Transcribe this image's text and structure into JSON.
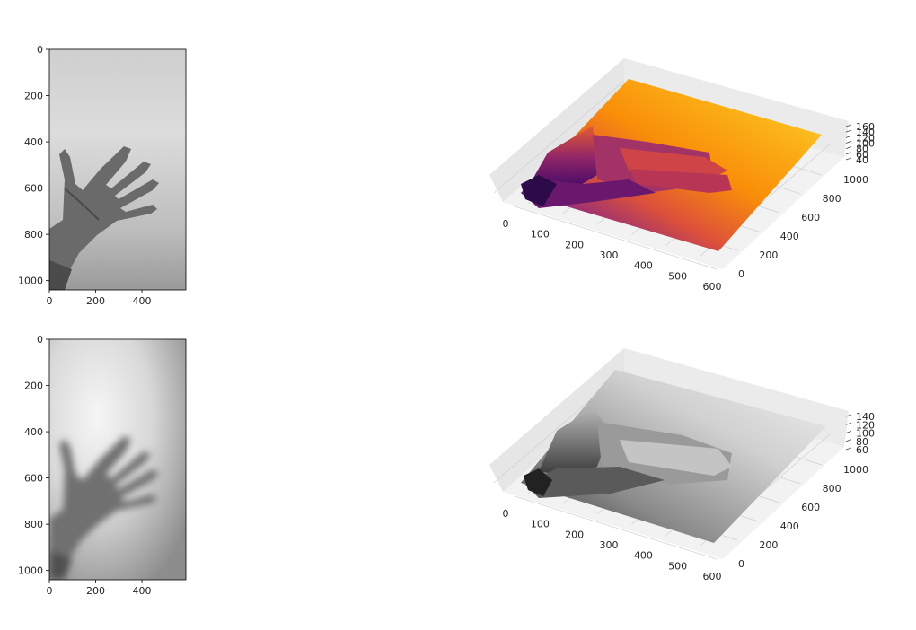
{
  "chart_data": [
    {
      "type": "image",
      "panel": "top-left",
      "description_visible": "grayscale photograph of an open hand against a light wall (sharp)",
      "colormap": "gray",
      "xticks": [
        "0",
        "200",
        "400"
      ],
      "yticks": [
        "0",
        "200",
        "400",
        "600",
        "800",
        "1000"
      ],
      "xlim": [
        0,
        590
      ],
      "ylim": [
        1040,
        0
      ]
    },
    {
      "type": "surface3d",
      "panel": "top-right",
      "colormap": "inferno",
      "xticks": [
        "0",
        "100",
        "200",
        "300",
        "400",
        "500",
        "600"
      ],
      "yticks": [
        "0",
        "200",
        "400",
        "600",
        "800",
        "1000"
      ],
      "zticks": [
        "40",
        "60",
        "80",
        "100",
        "120",
        "140",
        "160"
      ]
    },
    {
      "type": "image",
      "panel": "bottom-left",
      "description_visible": "grayscale photograph of an open hand against a light wall (blurred)",
      "colormap": "gray",
      "xticks": [
        "0",
        "200",
        "400"
      ],
      "yticks": [
        "0",
        "200",
        "400",
        "600",
        "800",
        "1000"
      ],
      "xlim": [
        0,
        590
      ],
      "ylim": [
        1040,
        0
      ]
    },
    {
      "type": "surface3d",
      "panel": "bottom-right",
      "colormap": "gray",
      "xticks": [
        "0",
        "100",
        "200",
        "300",
        "400",
        "500",
        "600"
      ],
      "yticks": [
        "0",
        "200",
        "400",
        "600",
        "800",
        "1000"
      ],
      "zticks": [
        "60",
        "80",
        "100",
        "120",
        "140"
      ]
    }
  ],
  "colors": {
    "pane_bg": "#f2f2f2",
    "pane_edge": "#d0d0d0",
    "grid": "#c8c8c8",
    "axis_text": "#262626"
  }
}
